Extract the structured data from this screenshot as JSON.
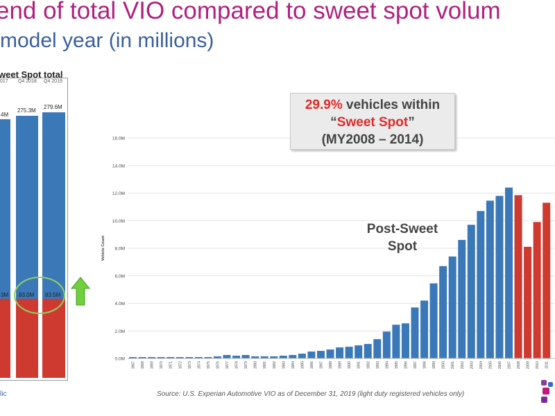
{
  "title": {
    "line1": "end of total VIO compared to sweet spot volum",
    "line2": "model year (in millions)"
  },
  "left_panel": {
    "title_part": "weet Spot",
    "title_total": "total",
    "quarters": [
      "017",
      "Q4 2018",
      "Q4 2019"
    ],
    "totals": [
      "4M",
      "275.3M",
      "279.6M"
    ],
    "sweet_spot": [
      "3M",
      "83.0M",
      "83.5M"
    ],
    "footer_text": "lic"
  },
  "callout": {
    "percent": "29.9%",
    "text1": " vehicles within",
    "quote_open": "“",
    "sweet": "Sweet Spot",
    "quote_close": "”",
    "line3": "(MY2008 – 2014)"
  },
  "annotation": {
    "line1": "Post-Sweet",
    "line2": "Spot"
  },
  "source": "Source: U.S. Experian Automotive VIO as of December 31, 2019  (light duty registered vehicles only)",
  "colors": {
    "post_sweet": "#3a78b8",
    "sweet": "#cf3a30",
    "title1": "#b0207f",
    "title2": "#3a5f9f",
    "arrow": "#6fcf3c"
  },
  "chart_data": {
    "type": "bar",
    "ylabel": "Vehicle Count",
    "ylim": [
      0,
      17
    ],
    "yticks": [
      "0.0M",
      "2.0M",
      "4.0M",
      "6.0M",
      "8.0M",
      "10.0M",
      "12.0M",
      "14.0M",
      "16.0M"
    ],
    "ytick_values": [
      0,
      2,
      4,
      6,
      8,
      10,
      12,
      14,
      16
    ],
    "grid": true,
    "categories": [
      "1967",
      "1968",
      "1969",
      "1970",
      "1971",
      "1972",
      "1973",
      "1974",
      "1975",
      "1976",
      "1977",
      "1978",
      "1979",
      "1980",
      "1981",
      "1982",
      "1983",
      "1984",
      "1985",
      "1986",
      "1987",
      "1988",
      "1989",
      "1990",
      "1991",
      "1992",
      "1993",
      "1994",
      "1995",
      "1996",
      "1997",
      "1998",
      "1999",
      "2000",
      "2001",
      "2002",
      "2003",
      "2004",
      "2005",
      "2006",
      "2007",
      "2008",
      "2009",
      "2010",
      "2011"
    ],
    "values": [
      0.1,
      0.1,
      0.1,
      0.1,
      0.1,
      0.1,
      0.1,
      0.1,
      0.1,
      0.15,
      0.25,
      0.2,
      0.25,
      0.15,
      0.15,
      0.15,
      0.2,
      0.25,
      0.35,
      0.5,
      0.55,
      0.65,
      0.8,
      0.85,
      0.95,
      1.05,
      1.4,
      1.95,
      2.45,
      2.55,
      3.7,
      4.2,
      5.45,
      6.7,
      7.4,
      8.6,
      9.7,
      10.7,
      11.45,
      11.8,
      12.4,
      11.85,
      8.1,
      9.9,
      11.3
    ],
    "sweet_spot_start_index": 41
  }
}
